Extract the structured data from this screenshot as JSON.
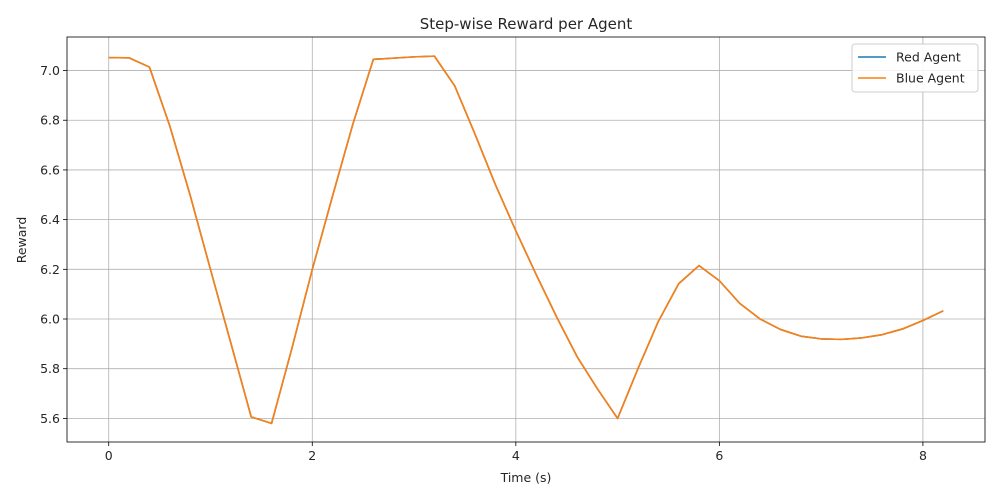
{
  "chart_data": {
    "type": "line",
    "title": "Step-wise Reward per Agent",
    "xlabel": "Time (s)",
    "ylabel": "Reward",
    "xlim": [
      -0.41,
      8.61
    ],
    "ylim": [
      5.505,
      7.135
    ],
    "xticks": [
      0,
      2,
      4,
      6,
      8
    ],
    "yticks": [
      5.6,
      5.8,
      6.0,
      6.2,
      6.4,
      6.6,
      6.8,
      7.0
    ],
    "grid": true,
    "legend_position": "top-right",
    "x": [
      0.0,
      0.2,
      0.4,
      0.6,
      0.8,
      1.0,
      1.2,
      1.4,
      1.6,
      1.8,
      2.0,
      2.2,
      2.4,
      2.6,
      2.8,
      3.0,
      3.2,
      3.4,
      3.6,
      3.8,
      4.0,
      4.2,
      4.4,
      4.6,
      4.8,
      5.0,
      5.2,
      5.4,
      5.6,
      5.8,
      6.0,
      6.2,
      6.4,
      6.6,
      6.8,
      7.0,
      7.2,
      7.4,
      7.6,
      7.8,
      8.0,
      8.2
    ],
    "series": [
      {
        "name": "Red Agent",
        "color": "#1f77b4",
        "values": [
          7.052,
          7.051,
          7.014,
          6.777,
          6.498,
          6.199,
          5.903,
          5.606,
          5.58,
          5.882,
          6.199,
          6.496,
          6.786,
          7.045,
          7.05,
          7.055,
          7.058,
          6.938,
          6.743,
          6.54,
          6.355,
          6.179,
          6.009,
          5.85,
          5.72,
          5.6,
          5.8,
          5.99,
          6.142,
          6.215,
          6.154,
          6.063,
          6.0,
          5.958,
          5.931,
          5.92,
          5.918,
          5.924,
          5.937,
          5.96,
          5.994,
          6.033
        ]
      },
      {
        "name": "Blue Agent",
        "color": "#ff7f0e",
        "values": [
          7.052,
          7.051,
          7.014,
          6.777,
          6.498,
          6.199,
          5.903,
          5.606,
          5.58,
          5.882,
          6.199,
          6.496,
          6.786,
          7.045,
          7.05,
          7.055,
          7.058,
          6.938,
          6.743,
          6.54,
          6.355,
          6.179,
          6.009,
          5.85,
          5.72,
          5.6,
          5.8,
          5.99,
          6.142,
          6.215,
          6.154,
          6.063,
          6.0,
          5.958,
          5.931,
          5.92,
          5.918,
          5.924,
          5.937,
          5.96,
          5.994,
          6.033
        ]
      }
    ]
  }
}
